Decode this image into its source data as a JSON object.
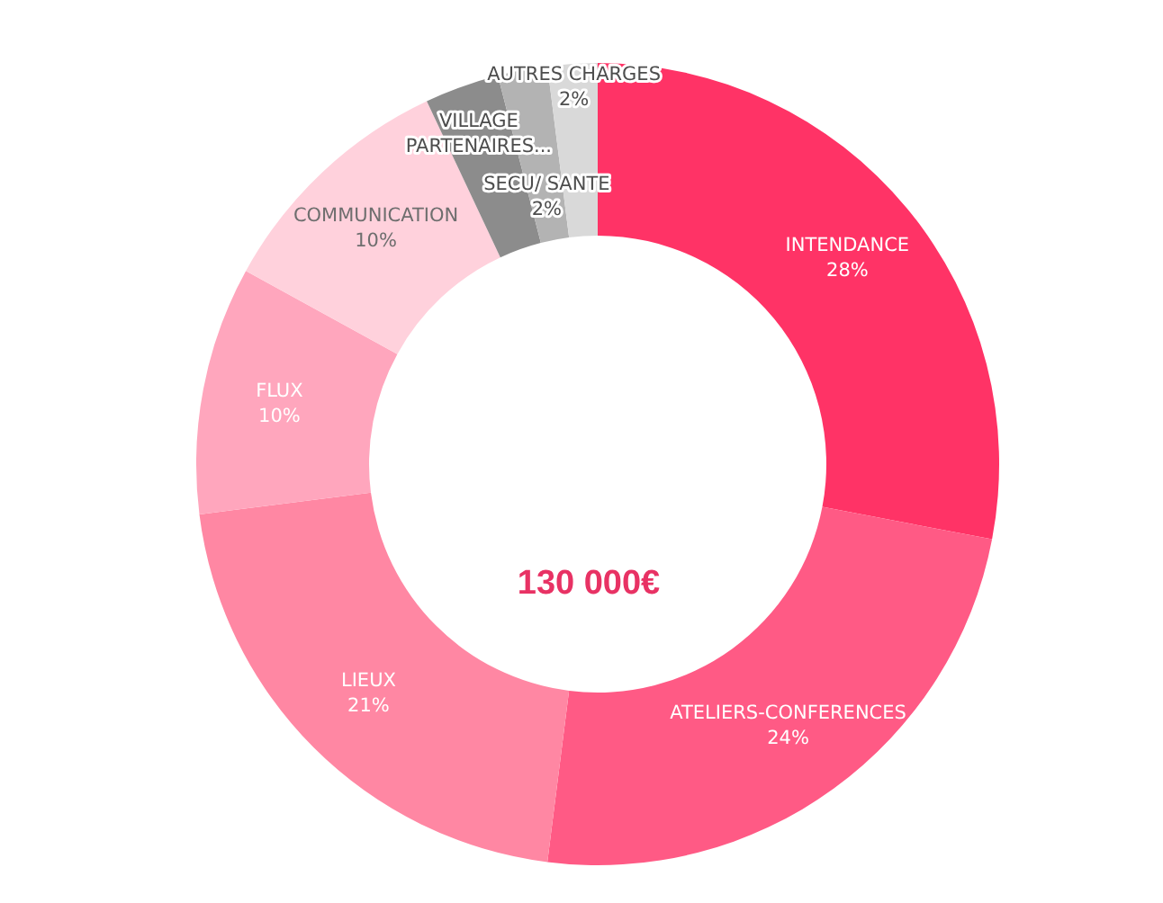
{
  "chart_data": {
    "type": "donut",
    "categories": [
      "INTENDANCE",
      "ATELIERS-CONFERENCES",
      "LIEUX",
      "FLUX",
      "COMMUNICATION",
      "VILLAGE PARTENAIRES...",
      "SECU/ SANTE",
      "AUTRES CHARGES"
    ],
    "values": [
      28,
      24,
      21,
      10,
      10,
      3,
      2,
      2
    ],
    "colors": [
      "#ff3366",
      "#ff5a85",
      "#ff87a3",
      "#ffa6bd",
      "#ffd1dc",
      "#8c8c8c",
      "#b3b3b3",
      "#d9d9d9"
    ],
    "value_labels": [
      "28%",
      "24%",
      "21%",
      "10%",
      "10%",
      null,
      "2%",
      "2%"
    ],
    "annotations": [
      "130 000€"
    ],
    "legend": false
  }
}
